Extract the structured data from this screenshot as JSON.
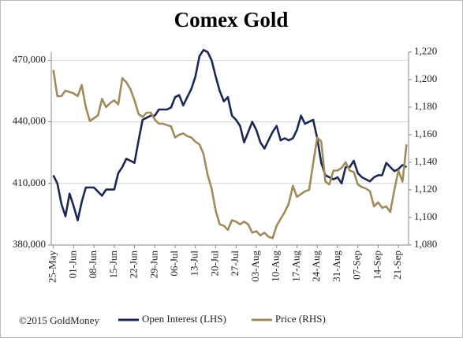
{
  "chart_data": {
    "type": "line",
    "title": "Comex Gold",
    "credit": "©2015 GoldMoney",
    "categories": [
      "25-May",
      null,
      null,
      null,
      null,
      "01-Jun",
      null,
      null,
      null,
      null,
      "08-Jun",
      null,
      null,
      null,
      null,
      "15-Jun",
      null,
      null,
      null,
      null,
      "22-Jun",
      null,
      null,
      null,
      null,
      "29-Jun",
      null,
      null,
      null,
      null,
      "06-Jul",
      null,
      null,
      null,
      null,
      "13-Jul",
      null,
      null,
      null,
      null,
      "20-Jul",
      null,
      null,
      null,
      null,
      "27-Jul",
      null,
      null,
      null,
      null,
      "03-Aug",
      null,
      null,
      null,
      null,
      "10-Aug",
      null,
      null,
      null,
      null,
      "17-Aug",
      null,
      null,
      null,
      null,
      "24-Aug",
      null,
      null,
      null,
      null,
      "31-Aug",
      null,
      null,
      null,
      null,
      "07-Sep",
      null,
      null,
      null,
      null,
      "14-Sep",
      null,
      null,
      null,
      null,
      "21-Sep",
      null,
      null
    ],
    "series": [
      {
        "name": "Open Interest (LHS)",
        "color": "#1c2755",
        "axis": "y",
        "values": [
          414000,
          410000,
          400000,
          394000,
          405000,
          399000,
          392000,
          401000,
          408000,
          408000,
          408000,
          406000,
          404000,
          407000,
          407000,
          407000,
          415000,
          418000,
          422000,
          421000,
          420000,
          431000,
          441000,
          442000,
          443000,
          443000,
          446000,
          446000,
          446000,
          447000,
          452000,
          453000,
          448000,
          452000,
          456000,
          462000,
          472000,
          475000,
          474000,
          470000,
          462000,
          455000,
          450000,
          452000,
          443000,
          441000,
          438000,
          430000,
          435000,
          440000,
          436000,
          430000,
          427000,
          431000,
          435000,
          438000,
          431000,
          432000,
          431000,
          432000,
          436000,
          443000,
          439000,
          440000,
          441000,
          432000,
          420000,
          414000,
          413000,
          412000,
          413000,
          410000,
          418000,
          418000,
          421000,
          415000,
          413000,
          412000,
          411000,
          413000,
          414000,
          414000,
          420000,
          418000,
          416000,
          417000,
          419000,
          418000
        ]
      },
      {
        "name": "Price (RHS)",
        "color": "#a08c5b",
        "axis": "y2",
        "values": [
          1207,
          1188,
          1188,
          1192,
          1191,
          1190,
          1188,
          1196,
          1180,
          1170,
          1172,
          1174,
          1186,
          1180,
          1183,
          1185,
          1182,
          1201,
          1198,
          1193,
          1185,
          1175,
          1173,
          1176,
          1176,
          1171,
          1168,
          1168,
          1167,
          1166,
          1158,
          1160,
          1161,
          1159,
          1158,
          1155,
          1153,
          1146,
          1131,
          1121,
          1105,
          1095,
          1094,
          1091,
          1098,
          1097,
          1095,
          1097,
          1095,
          1089,
          1090,
          1087,
          1089,
          1086,
          1085,
          1094,
          1099,
          1104,
          1110,
          1123,
          1115,
          1117,
          1119,
          1120,
          1139,
          1158,
          1155,
          1126,
          1124,
          1134,
          1134,
          1136,
          1140,
          1134,
          1133,
          1124,
          1122,
          1121,
          1119,
          1108,
          1111,
          1107,
          1108,
          1104,
          1120,
          1134,
          1126,
          1153
        ]
      }
    ],
    "ylim": [
      380000,
      474000
    ],
    "yticks": [
      {
        "value": 380000,
        "label": "380,000"
      },
      {
        "value": 410000,
        "label": "410,000"
      },
      {
        "value": 440000,
        "label": "440,000"
      },
      {
        "value": 470000,
        "label": "470,000"
      }
    ],
    "y2lim": [
      1080,
      1220
    ],
    "y2ticks": [
      {
        "value": 1080,
        "label": "1,080"
      },
      {
        "value": 1100,
        "label": "1,100"
      },
      {
        "value": 1120,
        "label": "1,120"
      },
      {
        "value": 1140,
        "label": "1,140"
      },
      {
        "value": 1160,
        "label": "1,160"
      },
      {
        "value": 1180,
        "label": "1,180"
      },
      {
        "value": 1200,
        "label": "1,200"
      },
      {
        "value": 1220,
        "label": "1,220"
      }
    ],
    "grid": true,
    "legend": "bottom"
  }
}
